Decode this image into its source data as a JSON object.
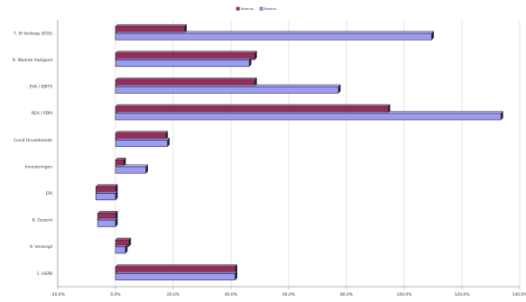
{
  "chart_data": {
    "type": "bar",
    "orientation": "horizontal",
    "title": "",
    "xlabel": "",
    "ylabel": "",
    "categories": [
      "7. IH Verkoop (EGS)",
      "6. Waarde Vastgoed",
      "EVA / EBITS",
      "REA / PDPI",
      "Covid Onvoldoende",
      "Investeringen",
      "ERI",
      "8. Gezond",
      "9. Verzorgd",
      "1. HSPB"
    ],
    "xlim": [
      -20,
      140
    ],
    "x_ticks": [
      "-20,0%",
      "0,0%",
      "20,0%",
      "40,0%",
      "60,0%",
      "80,0%",
      "100,0%",
      "120,0%",
      "140,0%"
    ],
    "grid": true,
    "legend_position": "top-center",
    "colors": {
      "series1": "#9b2c5a",
      "series2": "#9b9bf2",
      "edge": "#2a2a3a",
      "grid": "#d9d9d9",
      "axis": "#9a9a9a"
    },
    "series": [
      {
        "name": "Bsmrus",
        "color": "#9b2c5a",
        "values": [
          23.9,
          48.2,
          48.2,
          94.4,
          17.4,
          2.8,
          -6.8,
          -6.2,
          4.6,
          41.4
        ]
      },
      {
        "name": "Bsmiss",
        "color": "#9b9bf2",
        "values": [
          109.5,
          46.3,
          77.2,
          133.5,
          18.0,
          10.5,
          -6.8,
          -6.2,
          3.4,
          41.4
        ]
      }
    ]
  }
}
